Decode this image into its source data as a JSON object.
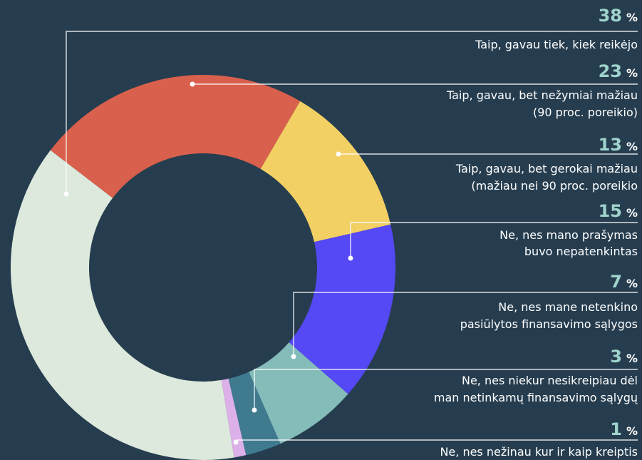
{
  "chart_data": {
    "type": "donut",
    "categories": [
      [
        "Taip, gavau tiek, kiek reikėjo"
      ],
      [
        "Taip, gavau, bet nežymiai mažiau",
        "(90 proc. poreikio)"
      ],
      [
        "Taip, gavau, bet gerokai mažiau",
        "(mažiau nei 90 proc. poreikio"
      ],
      [
        "Ne, nes mano prašymas",
        "buvo nepatenkintas"
      ],
      [
        "Ne, nes mane netenkino",
        "pasiūlytos finansavimo sąlygos"
      ],
      [
        "Ne, nes niekur nesikreipiau dėl",
        "man netinkamų finansavimo sąlygų"
      ],
      [
        "Ne, nes nežinau kur ir kaip kreiptis"
      ]
    ],
    "values": [
      38,
      23,
      13,
      15,
      7,
      3,
      1
    ],
    "unit": "%",
    "colors": [
      "#dce9dc",
      "#d9604c",
      "#f2d064",
      "#5548f5",
      "#84bcba",
      "#3f7a8f",
      "#dcb0e8"
    ]
  }
}
